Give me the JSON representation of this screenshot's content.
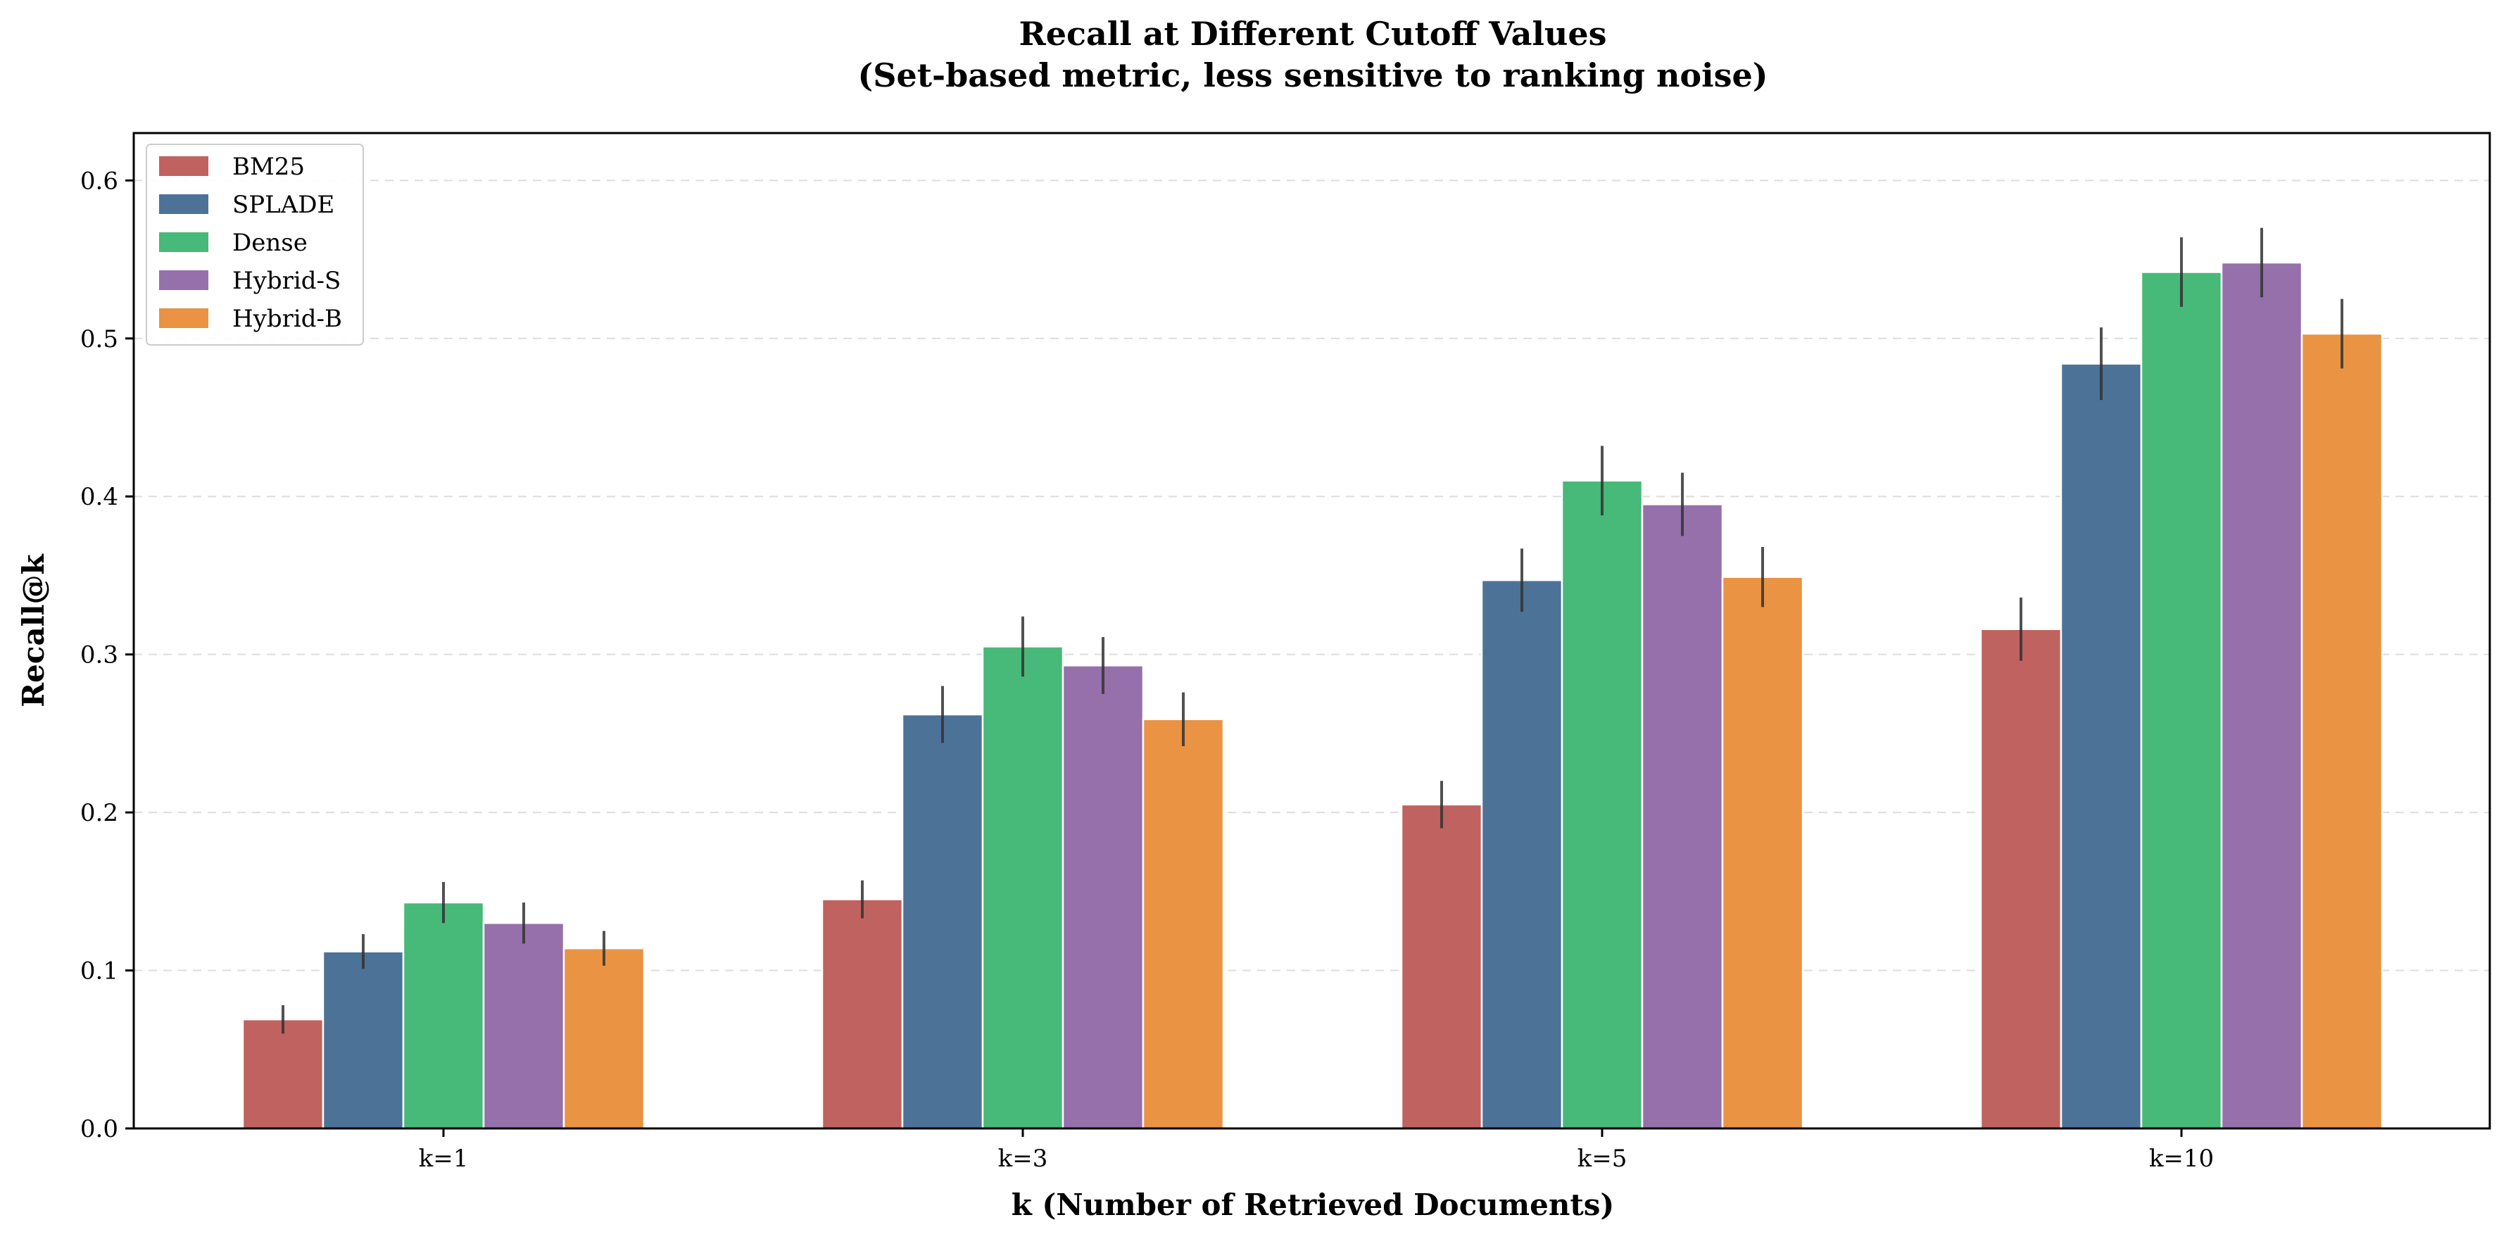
{
  "chart_data": {
    "type": "bar",
    "title": "Recall at Different Cutoff Values",
    "subtitle": "(Set-based metric, less sensitive to ranking noise)",
    "xlabel": "k (Number of Retrieved Documents)",
    "ylabel": "Recall@k",
    "categories": [
      "k=1",
      "k=3",
      "k=5",
      "k=10"
    ],
    "ylim": [
      0,
      0.63
    ],
    "yticks": [
      0.0,
      0.1,
      0.2,
      0.3,
      0.4,
      0.5,
      0.6
    ],
    "ytick_labels": [
      "0.0",
      "0.1",
      "0.2",
      "0.3",
      "0.4",
      "0.5",
      "0.6"
    ],
    "grid": "y-dashed",
    "legend_position": "top-left",
    "series": [
      {
        "name": "BM25",
        "color": "#c0625f",
        "values": [
          0.069,
          0.145,
          0.205,
          0.316
        ],
        "errors": [
          0.009,
          0.012,
          0.015,
          0.02
        ]
      },
      {
        "name": "SPLADE",
        "color": "#4d7297",
        "values": [
          0.112,
          0.262,
          0.347,
          0.484
        ],
        "errors": [
          0.011,
          0.018,
          0.02,
          0.023
        ]
      },
      {
        "name": "Dense",
        "color": "#47b978",
        "values": [
          0.143,
          0.305,
          0.41,
          0.542
        ],
        "errors": [
          0.013,
          0.019,
          0.022,
          0.022
        ]
      },
      {
        "name": "Hybrid-S",
        "color": "#9670aa",
        "values": [
          0.13,
          0.293,
          0.395,
          0.548
        ],
        "errors": [
          0.013,
          0.018,
          0.02,
          0.022
        ]
      },
      {
        "name": "Hybrid-B",
        "color": "#e99343",
        "values": [
          0.114,
          0.259,
          0.349,
          0.503
        ],
        "errors": [
          0.011,
          0.017,
          0.019,
          0.022
        ]
      }
    ]
  }
}
